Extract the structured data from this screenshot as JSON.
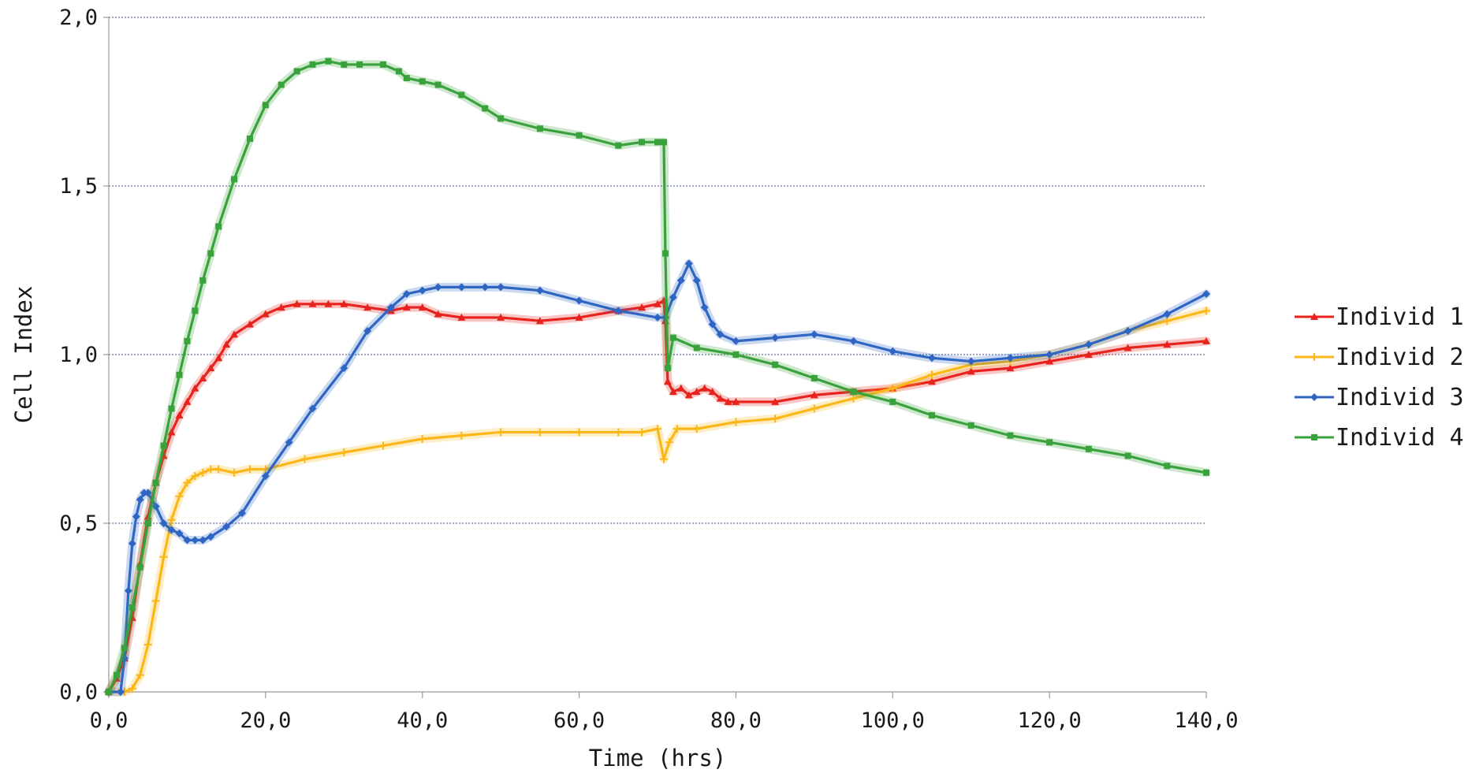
{
  "chart_data": {
    "type": "line",
    "title": "",
    "xlabel": "Time (hrs)",
    "ylabel": "Cell Index",
    "xlim": [
      0,
      140
    ],
    "ylim": [
      0,
      2
    ],
    "x_ticks": [
      0,
      20,
      40,
      60,
      80,
      100,
      120,
      140
    ],
    "x_tick_labels": [
      "0,0",
      "20,0",
      "40,0",
      "60,0",
      "80,0",
      "100,0",
      "120,0",
      "140,0"
    ],
    "y_ticks": [
      0,
      0.5,
      1,
      1.5,
      2
    ],
    "y_tick_labels": [
      "0,0",
      "0,5",
      "1,0",
      "1,5",
      "2,0"
    ],
    "grid": "horizontal dotted",
    "legend_position": "right",
    "series": [
      {
        "name": "Individ 1",
        "color": "#e8221c",
        "marker": "triangle",
        "x": [
          0,
          1,
          2,
          3,
          4,
          5,
          6,
          7,
          8,
          9,
          10,
          11,
          12,
          13,
          14,
          15,
          16,
          18,
          20,
          22,
          24,
          26,
          28,
          30,
          33,
          36,
          38,
          40,
          42,
          45,
          50,
          55,
          60,
          65,
          68,
          70,
          70.8,
          71,
          71.3,
          72,
          73,
          74,
          75,
          76,
          77,
          78,
          79,
          80,
          85,
          90,
          95,
          100,
          105,
          110,
          115,
          120,
          125,
          130,
          135,
          140
        ],
        "y": [
          0,
          0.04,
          0.1,
          0.22,
          0.38,
          0.52,
          0.62,
          0.7,
          0.77,
          0.82,
          0.86,
          0.9,
          0.93,
          0.96,
          0.99,
          1.03,
          1.06,
          1.09,
          1.12,
          1.14,
          1.15,
          1.15,
          1.15,
          1.15,
          1.14,
          1.13,
          1.14,
          1.14,
          1.12,
          1.11,
          1.11,
          1.1,
          1.11,
          1.13,
          1.14,
          1.15,
          1.16,
          1.1,
          0.92,
          0.89,
          0.9,
          0.88,
          0.89,
          0.9,
          0.89,
          0.87,
          0.86,
          0.86,
          0.86,
          0.88,
          0.89,
          0.9,
          0.92,
          0.95,
          0.96,
          0.98,
          1.0,
          1.02,
          1.03,
          1.04
        ]
      },
      {
        "name": "Individ 2",
        "color": "#fbb717",
        "marker": "plus",
        "x": [
          0,
          2,
          3,
          4,
          5,
          6,
          7,
          8,
          9,
          10,
          11,
          12,
          13,
          14,
          16,
          18,
          20,
          25,
          30,
          35,
          40,
          45,
          50,
          55,
          60,
          65,
          68,
          70,
          70.8,
          71.5,
          72.5,
          75,
          80,
          85,
          90,
          95,
          100,
          105,
          110,
          115,
          120,
          125,
          130,
          135,
          140
        ],
        "y": [
          0,
          0,
          0.01,
          0.05,
          0.14,
          0.27,
          0.4,
          0.51,
          0.58,
          0.62,
          0.64,
          0.65,
          0.66,
          0.66,
          0.65,
          0.66,
          0.66,
          0.69,
          0.71,
          0.73,
          0.75,
          0.76,
          0.77,
          0.77,
          0.77,
          0.77,
          0.77,
          0.78,
          0.69,
          0.74,
          0.78,
          0.78,
          0.8,
          0.81,
          0.84,
          0.87,
          0.9,
          0.94,
          0.97,
          0.98,
          1.0,
          1.03,
          1.07,
          1.1,
          1.13
        ]
      },
      {
        "name": "Individ 3",
        "color": "#2f66c3",
        "marker": "diamond",
        "x": [
          0,
          1.5,
          2,
          2.5,
          3,
          3.5,
          4,
          4.5,
          5,
          6,
          7,
          8,
          9,
          10,
          11,
          12,
          13,
          15,
          17,
          20,
          23,
          26,
          30,
          33,
          36,
          38,
          40,
          42,
          45,
          48,
          50,
          55,
          60,
          65,
          70,
          71,
          72,
          73,
          74,
          75,
          76,
          77,
          78,
          80,
          85,
          90,
          95,
          100,
          105,
          110,
          115,
          120,
          125,
          130,
          135,
          140
        ],
        "y": [
          0,
          0,
          0.1,
          0.3,
          0.44,
          0.52,
          0.57,
          0.59,
          0.59,
          0.55,
          0.5,
          0.48,
          0.47,
          0.45,
          0.45,
          0.45,
          0.46,
          0.49,
          0.53,
          0.64,
          0.74,
          0.84,
          0.96,
          1.07,
          1.14,
          1.18,
          1.19,
          1.2,
          1.2,
          1.2,
          1.2,
          1.19,
          1.16,
          1.13,
          1.11,
          1.11,
          1.17,
          1.22,
          1.27,
          1.22,
          1.14,
          1.09,
          1.06,
          1.04,
          1.05,
          1.06,
          1.04,
          1.01,
          0.99,
          0.98,
          0.99,
          1.0,
          1.03,
          1.07,
          1.12,
          1.18
        ]
      },
      {
        "name": "Individ 4",
        "color": "#3aa23c",
        "marker": "square",
        "x": [
          0,
          1,
          2,
          3,
          4,
          5,
          6,
          7,
          8,
          9,
          10,
          11,
          12,
          13,
          14,
          16,
          18,
          20,
          22,
          24,
          26,
          28,
          30,
          32,
          35,
          37,
          38,
          40,
          42,
          45,
          48,
          50,
          55,
          60,
          65,
          68,
          70,
          70.8,
          71,
          71.3,
          72,
          75,
          80,
          85,
          90,
          95,
          100,
          105,
          110,
          115,
          120,
          125,
          130,
          135,
          140
        ],
        "y": [
          0,
          0.05,
          0.13,
          0.25,
          0.37,
          0.5,
          0.62,
          0.73,
          0.84,
          0.94,
          1.04,
          1.13,
          1.22,
          1.3,
          1.38,
          1.52,
          1.64,
          1.74,
          1.8,
          1.84,
          1.86,
          1.87,
          1.86,
          1.86,
          1.86,
          1.84,
          1.82,
          1.81,
          1.8,
          1.77,
          1.73,
          1.7,
          1.67,
          1.65,
          1.62,
          1.63,
          1.63,
          1.63,
          1.3,
          0.96,
          1.05,
          1.02,
          1.0,
          0.97,
          0.93,
          0.89,
          0.86,
          0.82,
          0.79,
          0.76,
          0.74,
          0.72,
          0.7,
          0.67,
          0.65
        ]
      }
    ]
  }
}
